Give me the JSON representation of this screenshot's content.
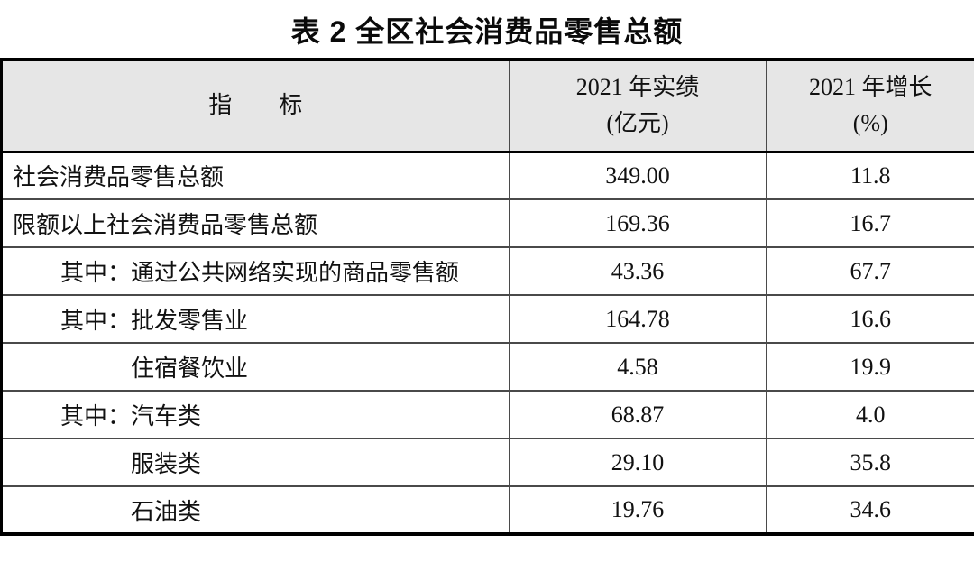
{
  "title": "表 2  全区社会消费品零售总额",
  "header": {
    "indicator": "指　　标",
    "value_line1": "2021 年实绩",
    "value_line2": "(亿元)",
    "growth_line1": "2021 年增长",
    "growth_line2": "(%)"
  },
  "rows": [
    {
      "indicator": "社会消费品零售总额",
      "indent": 0,
      "value": "349.00",
      "growth": "11.8"
    },
    {
      "indicator": "限额以上社会消费品零售总额",
      "indent": 0,
      "value": "169.36",
      "growth": "16.7"
    },
    {
      "indicator": "其中：通过公共网络实现的商品零售额",
      "indent": 1,
      "value": "43.36",
      "growth": "67.7"
    },
    {
      "indicator": "其中：批发零售业",
      "indent": 1,
      "value": "164.78",
      "growth": "16.6"
    },
    {
      "indicator": "住宿餐饮业",
      "indent": 2,
      "value": "4.58",
      "growth": "19.9"
    },
    {
      "indicator": "其中：汽车类",
      "indent": 1,
      "value": "68.87",
      "growth": "4.0"
    },
    {
      "indicator": "服装类",
      "indent": 2,
      "value": "29.10",
      "growth": "35.8"
    },
    {
      "indicator": "石油类",
      "indent": 2,
      "value": "19.76",
      "growth": "34.6"
    }
  ],
  "colors": {
    "header_background": "#e6e6e6",
    "heavy_border": "#000000",
    "inner_border": "#4a4a4a",
    "text": "#111111"
  }
}
